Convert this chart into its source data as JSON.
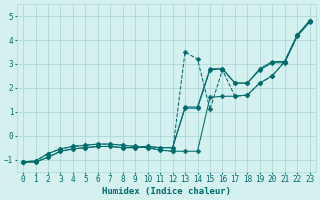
{
  "title": "",
  "xlabel": "Humidex (Indice chaleur)",
  "ylabel": "",
  "background_color": "#d4f0ef",
  "grid_color": "#b0d8d5",
  "line_color": "#006b6b",
  "xlim": [
    -0.5,
    23.5
  ],
  "ylim": [
    -1.5,
    5.5
  ],
  "yticks": [
    -1,
    0,
    1,
    2,
    3,
    4,
    5
  ],
  "xticks": [
    0,
    1,
    2,
    3,
    4,
    5,
    6,
    7,
    8,
    9,
    10,
    11,
    12,
    13,
    14,
    15,
    16,
    17,
    18,
    19,
    20,
    21,
    22,
    23
  ],
  "series": [
    {
      "x": [
        0,
        1,
        2,
        3,
        4,
        5,
        6,
        7,
        8,
        9,
        10,
        11,
        12,
        13,
        14,
        15,
        16,
        17,
        18,
        19,
        20,
        21,
        22,
        23
      ],
      "y": [
        -1.1,
        -1.1,
        -0.9,
        -0.65,
        -0.55,
        -0.5,
        -0.45,
        -0.45,
        -0.5,
        -0.5,
        -0.45,
        -0.5,
        -0.5,
        1.2,
        1.2,
        2.8,
        2.8,
        2.2,
        2.2,
        2.8,
        3.1,
        3.1,
        4.2,
        4.8
      ],
      "style": "solid",
      "marker": "D",
      "markersize": 2.5
    },
    {
      "x": [
        0,
        1,
        2,
        3,
        4,
        5,
        6,
        7,
        8,
        9,
        10,
        11,
        12,
        13,
        14,
        15,
        16,
        17,
        18,
        19,
        20,
        21,
        22,
        23
      ],
      "y": [
        -1.1,
        -1.1,
        -0.9,
        -0.65,
        -0.55,
        -0.5,
        -0.45,
        -0.45,
        -0.5,
        -0.5,
        -0.45,
        -0.5,
        -0.5,
        1.15,
        1.15,
        2.75,
        2.8,
        2.2,
        2.2,
        2.75,
        3.05,
        3.05,
        4.15,
        4.75
      ],
      "style": "solid",
      "marker": "D",
      "markersize": 2.5
    },
    {
      "x": [
        0,
        1,
        2,
        3,
        4,
        5,
        6,
        7,
        8,
        9,
        10,
        11,
        12,
        13,
        14,
        15,
        16,
        17,
        18,
        19,
        20,
        21,
        22,
        23
      ],
      "y": [
        -1.1,
        -1.05,
        -0.75,
        -0.55,
        -0.45,
        -0.4,
        -0.35,
        -0.35,
        -0.4,
        -0.45,
        -0.5,
        -0.6,
        -0.65,
        -0.65,
        -0.65,
        1.6,
        1.65,
        1.65,
        1.7,
        2.2,
        2.5,
        3.1,
        4.2,
        4.8
      ],
      "style": "solid",
      "marker": "D",
      "markersize": 2.5
    },
    {
      "x": [
        0,
        1,
        2,
        3,
        4,
        5,
        6,
        7,
        8,
        9,
        10,
        11,
        12,
        13,
        14,
        15,
        16,
        17,
        18,
        19,
        20,
        21,
        22,
        23
      ],
      "y": [
        -1.1,
        -1.05,
        -0.75,
        -0.55,
        -0.45,
        -0.4,
        -0.35,
        -0.35,
        -0.4,
        -0.45,
        -0.5,
        -0.6,
        -0.65,
        3.5,
        3.2,
        1.1,
        2.75,
        1.65,
        1.7,
        2.2,
        2.5,
        3.1,
        4.2,
        4.8
      ],
      "style": "dashed",
      "marker": "D",
      "markersize": 2.5
    }
  ]
}
